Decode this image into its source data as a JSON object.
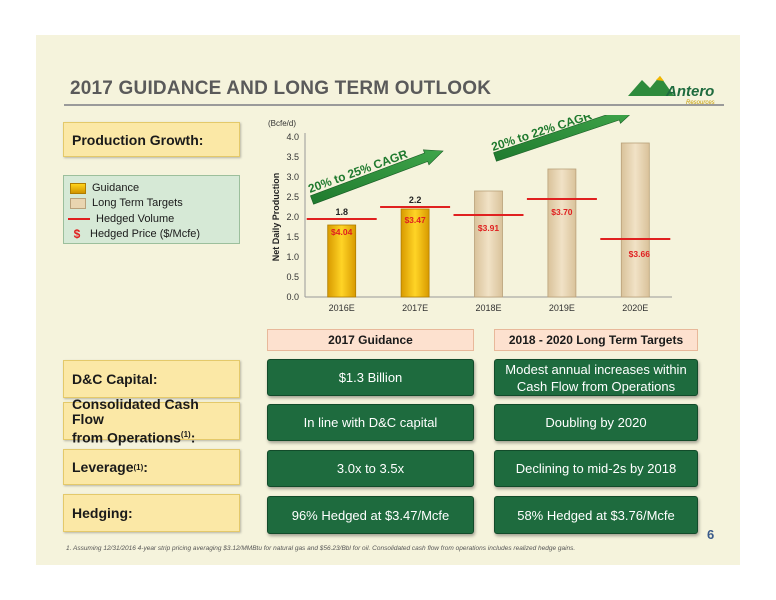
{
  "title": "2017 GUIDANCE AND LONG TERM OUTLOOK",
  "logo": {
    "name": "Antero",
    "sub": "Resources"
  },
  "section_labels": {
    "production": "Production Growth:",
    "dc_capital": "D&C Capital:",
    "cash_flow_line1": "Consolidated Cash Flow",
    "cash_flow_line2": "from Operations",
    "cash_flow_sup": "(1)",
    "cash_flow_colon": ":",
    "leverage": "Leverage",
    "leverage_sup": "(1)",
    "leverage_colon": ":",
    "hedging": "Hedging:"
  },
  "legend": {
    "guidance": "Guidance",
    "long_term": "Long Term Targets",
    "hedged_volume": "Hedged Volume",
    "hedged_price_symbol": "$",
    "hedged_price": "Hedged Price ($/Mcfe)"
  },
  "chart_data": {
    "type": "bar",
    "unit_label": "(Bcfe/d)",
    "ylabel": "Net Daily Production",
    "ylim": [
      0,
      4.0
    ],
    "yticks": [
      "0.0",
      "0.5",
      "1.0",
      "1.5",
      "2.0",
      "2.5",
      "3.0",
      "3.5",
      "4.0"
    ],
    "categories": [
      "2016E",
      "2017E",
      "2018E",
      "2019E",
      "2020E"
    ],
    "values": [
      1.8,
      2.2,
      2.65,
      3.2,
      3.85
    ],
    "bar_kinds": [
      "guidance",
      "guidance",
      "long_term",
      "long_term",
      "long_term"
    ],
    "value_labels": [
      "1.8",
      "2.2",
      "",
      "",
      ""
    ],
    "hedged_volume": [
      1.95,
      2.25,
      2.05,
      2.45,
      1.45
    ],
    "hedged_price_labels": [
      "$4.04",
      "$3.47",
      "$3.91",
      "$3.70",
      "$3.66"
    ],
    "cagr_labels": [
      "20% to 25% CAGR",
      "20% to 22% CAGR"
    ],
    "colors": {
      "guidance": "#f2b600",
      "long_term": "#e6d0a8",
      "hedge": "#e02020",
      "arrow": "#2e8b3c"
    }
  },
  "column_headers": [
    "2017 Guidance",
    "2018 - 2020 Long Term Targets"
  ],
  "rows": {
    "dc_capital": [
      "$1.3 Billion",
      "Modest annual increases within Cash Flow from Operations"
    ],
    "cash_flow": [
      "In line with D&C capital",
      "Doubling by 2020"
    ],
    "leverage": [
      "3.0x to 3.5x",
      "Declining to mid-2s by 2018"
    ],
    "hedging": [
      "96% Hedged at $3.47/Mcfe",
      "58% Hedged at $3.76/Mcfe"
    ]
  },
  "page_number": "6",
  "footnote": "1.  Assuming 12/31/2016 4-year strip pricing averaging $3.12/MMBtu for natural gas and $56.23/Bbl for oil.  Consolidated cash flow from operations includes realized hedge gains."
}
